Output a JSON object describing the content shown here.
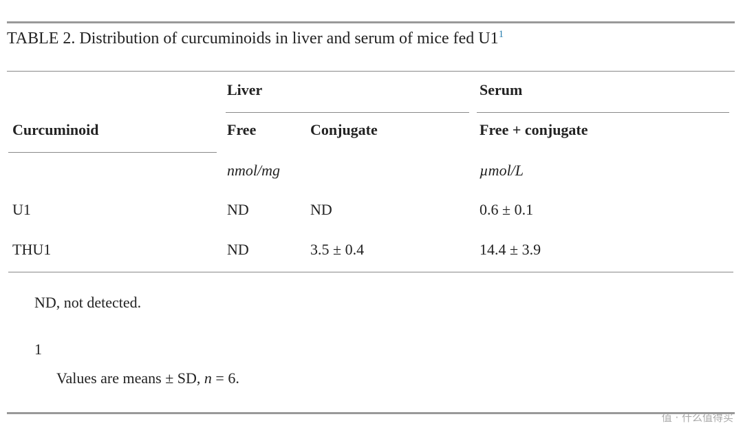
{
  "table": {
    "title": "TABLE 2. Distribution of curcuminoids in liver and serum of mice fed U1",
    "title_footnote_mark": "1",
    "group_headers": [
      "Liver",
      "Serum"
    ],
    "column_headers": [
      "Curcuminoid",
      "Free",
      "Conjugate",
      "Free + conjugate"
    ],
    "units": [
      "nmol/mg",
      "µmol/L"
    ],
    "rows": [
      [
        "U1",
        "ND",
        "ND",
        "0.6 ± 0.1"
      ],
      [
        "THU1",
        "ND",
        "3.5 ± 0.4",
        "14.4 ± 3.9"
      ]
    ]
  },
  "footnotes": {
    "abbreviation": "ND, not detected.",
    "mark": "1",
    "note": [
      "Values are means ± SD, ",
      "n",
      " = 6."
    ]
  },
  "watermark": "值 · 什么值得买"
}
